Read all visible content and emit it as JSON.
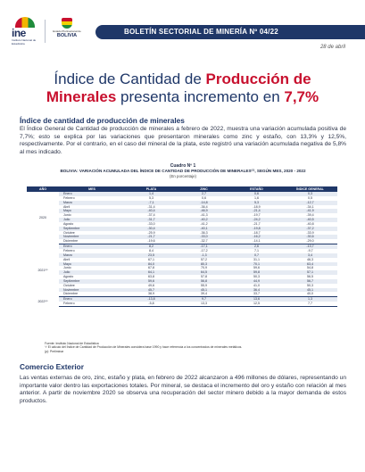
{
  "header": {
    "ine_logo_text": "ine",
    "ine_logo_sub": "Instituto Nacional de Estadística",
    "bolivia_text1": "Estado Plurinacional de",
    "bolivia_text2": "BOLIVIA",
    "banner_title": "BOLETÍN SECTORIAL DE MINERÍA Nº 04/22",
    "date": "28 de abril"
  },
  "title": {
    "line1_a": "Índice de Cantidad de ",
    "line1_b": "Producción de",
    "line2_a": "Minerales",
    "line2_b": " presenta incremento en ",
    "line2_c": "7,7%"
  },
  "section1": {
    "heading": "Índice de cantidad de producción de minerales",
    "paragraph": "El Índice General de Cantidad de producción de minerales a febrero de 2022, muestra una variación acumulada positiva de 7,7%; esto se explica por las variaciones que presentaron minerales como zinc y estaño, con 13,3% y 12,5%, respectivamente. Por el contrario, en el caso del mineral de la plata, este registró una variación acumulada negativa de 5,8% al mes indicado."
  },
  "table": {
    "caption1": "Cuadro Nº 1",
    "caption2": "BOLIVIA: VARIACIÓN ACUMULADA DEL ÍNDICE DE CANTIDAD DE PRODUCCIÓN DE MINERALES⁽¹⁾, SEGÚN MES, 2020 - 2022",
    "caption3": "(En porcentaje)",
    "headers": [
      "AÑO",
      "MES",
      "PLATA",
      "ZINC",
      "ESTAÑO",
      "ÍNDICE GENERAL"
    ],
    "groups": [
      {
        "year": "2020",
        "rows": [
          [
            "Enero",
            "1,4",
            "2,7",
            "0,6",
            "0,3"
          ],
          [
            "Febrero",
            "5,3",
            "0,6",
            "1,6",
            "0,5"
          ],
          [
            "Marzo",
            "-7,1",
            "-14,8",
            "5,3",
            "-12,7"
          ],
          [
            "Abril",
            "-31,4",
            "-36,4",
            "-18,9",
            "-34,1"
          ],
          [
            "Mayo",
            "-40,4",
            "-46,9",
            "-21,4",
            "-41,9"
          ],
          [
            "Junio",
            "-37,4",
            "-41,3",
            "-19,7",
            "-39,4"
          ],
          [
            "Julio",
            "-31,7",
            "-40,2",
            "-24,2",
            "-40,5"
          ],
          [
            "Agosto",
            "-33,0",
            "-41,2",
            "-21,7",
            "-40,8"
          ],
          [
            "Septiembre",
            "-30,4",
            "-40,1",
            "-19,8",
            "-37,2"
          ],
          [
            "Octubre",
            "-25,9",
            "-36,3",
            "-18,7",
            "-33,9"
          ],
          [
            "Noviembre",
            "-21,7",
            "-33,0",
            "-16,2",
            "-30,6"
          ],
          [
            "Diciembre",
            "-19,6",
            "-32,7",
            "-14,1",
            "-29,0"
          ]
        ]
      },
      {
        "year": "2021⁽ᵖ⁾",
        "rows": [
          [
            "Enero",
            "8,2",
            "-17,1",
            "2,6",
            "-13,7"
          ],
          [
            "Febrero",
            "8,4",
            "-17,2",
            "7,1",
            "-9,7"
          ],
          [
            "Marzo",
            "23,5",
            "-1,3",
            "0,7",
            "3,4"
          ],
          [
            "Abril",
            "67,1",
            "57,2",
            "31,1",
            "46,3"
          ],
          [
            "Mayo",
            "84,0",
            "80,3",
            "70,1",
            "63,4"
          ],
          [
            "Junio",
            "67,8",
            "70,9",
            "59,6",
            "54,8"
          ],
          [
            "Julio",
            "64,1",
            "64,5",
            "59,8",
            "57,1"
          ],
          [
            "Agosto",
            "63,8",
            "57,8",
            "50,3",
            "56,5"
          ],
          [
            "Septiembre",
            "59,6",
            "56,8",
            "44,9",
            "56,7"
          ],
          [
            "Octubre",
            "49,6",
            "55,9",
            "41,0",
            "50,3"
          ],
          [
            "Noviembre",
            "45,7",
            "45,1",
            "36,4",
            "45,1"
          ],
          [
            "Diciembre",
            "38,9",
            "39,4",
            "33,7",
            "40,0"
          ]
        ]
      },
      {
        "year": "2022⁽ᵖ⁾",
        "rows": [
          [
            "Enero",
            "-13,8",
            "9,7",
            "13,6",
            "1,3"
          ],
          [
            "Febrero",
            "-5,8",
            "13,3",
            "12,5",
            "7,7"
          ]
        ]
      }
    ],
    "notes": [
      "Fuente: Instituto Nacional de Estadística",
      "⁽¹⁾ El cálculo del Índice de Cantidad de Producción de Minerales considera base 1990 y hace referencia a los concentrados de minerales metálicos.",
      "(p): Preliminar"
    ]
  },
  "section2": {
    "heading": "Comercio Exterior",
    "paragraph": "Las ventas externas de oro, zinc, estaño y plata, en febrero de 2022 alcanzaron a 496 millones de dólares, representando un importante valor dentro las exportaciones totales. Por mineral, se destaca el incremento del oro y estaño con relación al mes anterior. A partir de noviembre 2020 se observa una recuperación del sector minero debido a la mayor demanda de estos productos."
  },
  "colors": {
    "navy": "#1f3768",
    "accent_red": "#c8102e",
    "row_shade": "#e6ebf3"
  }
}
